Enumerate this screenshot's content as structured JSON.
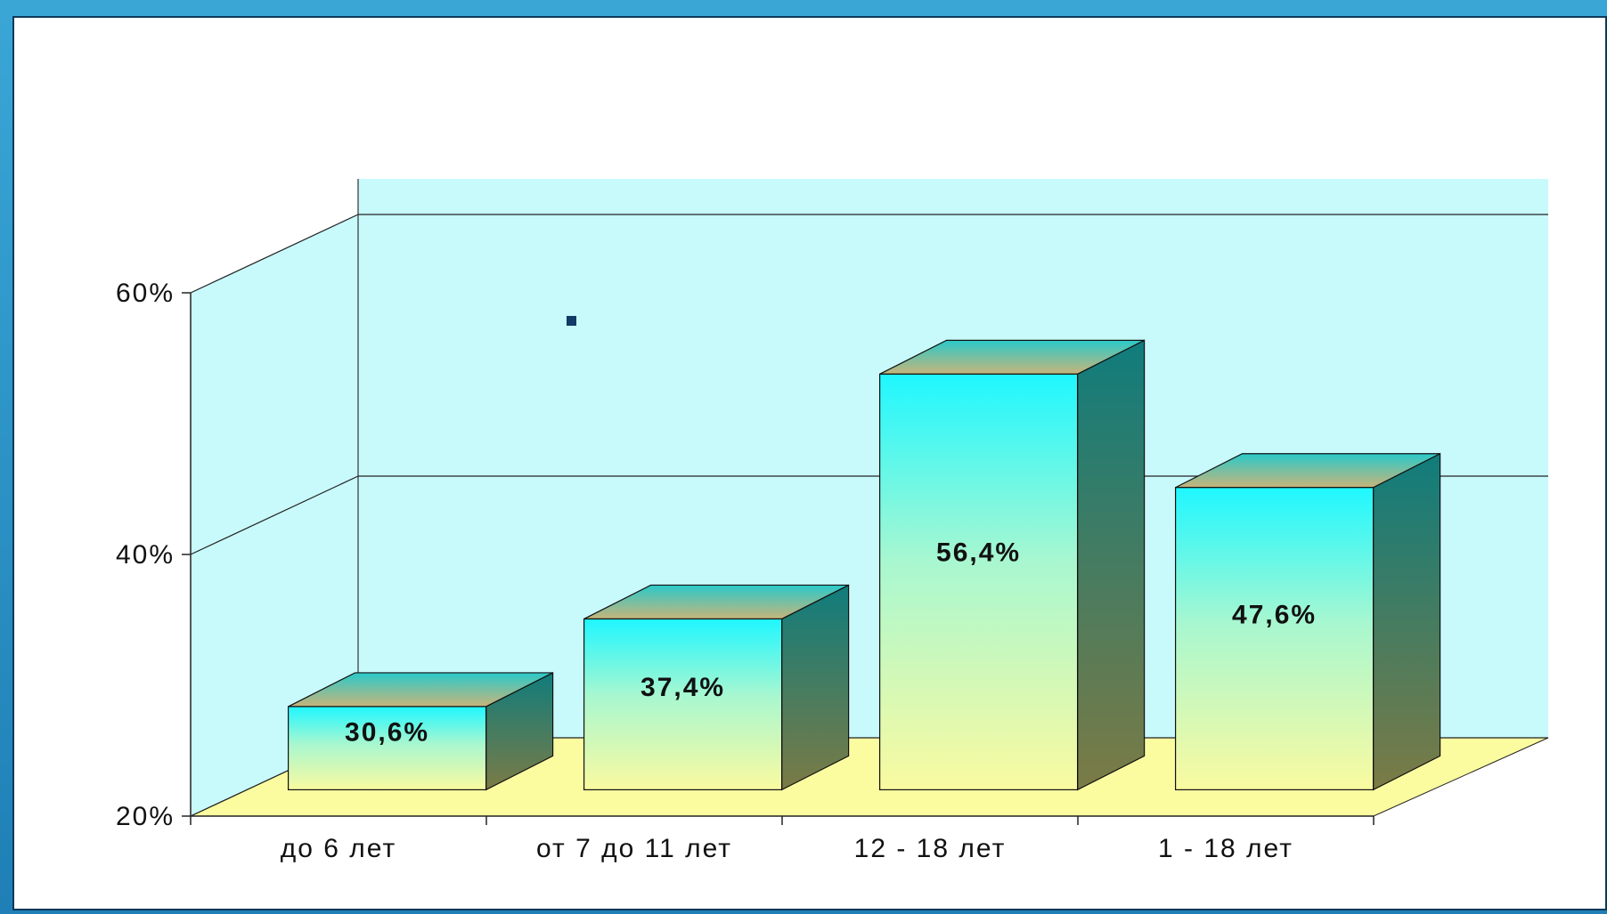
{
  "chart_data": {
    "type": "bar",
    "categories": [
      "до 6 лет",
      "от 7 до 11 лет",
      "12 - 18 лет",
      "1 - 18 лет"
    ],
    "values": [
      30.6,
      37.4,
      56.4,
      47.6
    ],
    "data_labels": [
      "30,6%",
      "37,4%",
      "56,4%",
      "47,6%"
    ],
    "ylim": [
      20,
      60
    ],
    "y_ticks": [
      {
        "value": 20,
        "label": "20%"
      },
      {
        "value": 40,
        "label": "40%"
      },
      {
        "value": 60,
        "label": "60%"
      }
    ],
    "grid": true,
    "style": "3d-column"
  },
  "colors": {
    "wall": "#c8fafc",
    "floor": "#fbfba0",
    "bar_top_gradient": "#2ac9c9",
    "bar_front_top": "#1ff7ff",
    "bar_front_bottom": "#fafaa0",
    "bar_side_top": "#107c7c",
    "bar_side_bottom": "#7b7b45",
    "marker": "#123a66"
  }
}
